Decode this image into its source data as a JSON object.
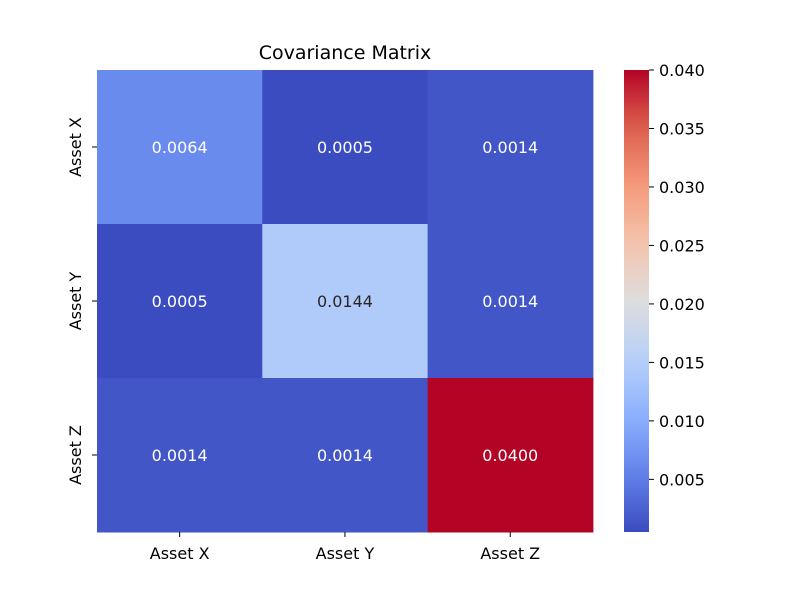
{
  "chart_data": {
    "type": "heatmap",
    "title": "Covariance Matrix",
    "x_labels": [
      "Asset X",
      "Asset Y",
      "Asset Z"
    ],
    "y_labels": [
      "Asset X",
      "Asset Y",
      "Asset Z"
    ],
    "values": [
      [
        0.0064,
        0.0005,
        0.0014
      ],
      [
        0.0005,
        0.0144,
        0.0014
      ],
      [
        0.0014,
        0.0014,
        0.04
      ]
    ],
    "cell_labels": [
      [
        "0.0064",
        "0.0005",
        "0.0014"
      ],
      [
        "0.0005",
        "0.0144",
        "0.0014"
      ],
      [
        "0.0014",
        "0.0014",
        "0.0400"
      ]
    ],
    "colormap": "coolwarm",
    "vmin": 0.0005,
    "vmax": 0.04,
    "colorbar": {
      "ticks": [
        0.005,
        0.01,
        0.015,
        0.02,
        0.025,
        0.03,
        0.035,
        0.04
      ],
      "tick_labels": [
        "0.005",
        "0.010",
        "0.015",
        "0.020",
        "0.025",
        "0.030",
        "0.035",
        "0.040"
      ]
    }
  }
}
